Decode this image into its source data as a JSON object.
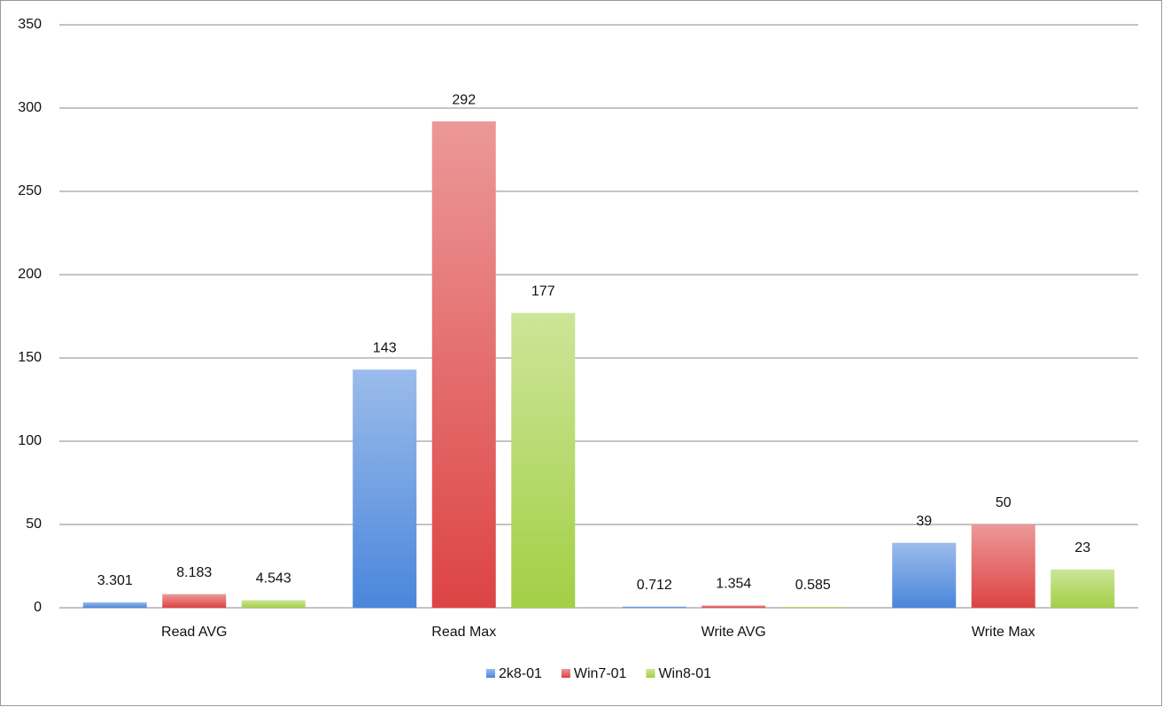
{
  "chart_data": {
    "type": "bar",
    "categories": [
      "Read AVG",
      "Read Max",
      "Write AVG",
      "Write Max"
    ],
    "series": [
      {
        "name": "2k8-01",
        "color": "#4a86db",
        "values": [
          3.301,
          143,
          0.712,
          39
        ]
      },
      {
        "name": "Win7-01",
        "color": "#dd4444",
        "values": [
          8.183,
          292,
          1.354,
          50
        ]
      },
      {
        "name": "Win8-01",
        "color": "#a3cf45",
        "values": [
          4.543,
          177,
          0.585,
          23
        ]
      }
    ],
    "ylim": [
      0,
      350
    ],
    "yticks": [
      0,
      50,
      100,
      150,
      200,
      250,
      300,
      350
    ],
    "grid": true,
    "legend": "bottom"
  }
}
